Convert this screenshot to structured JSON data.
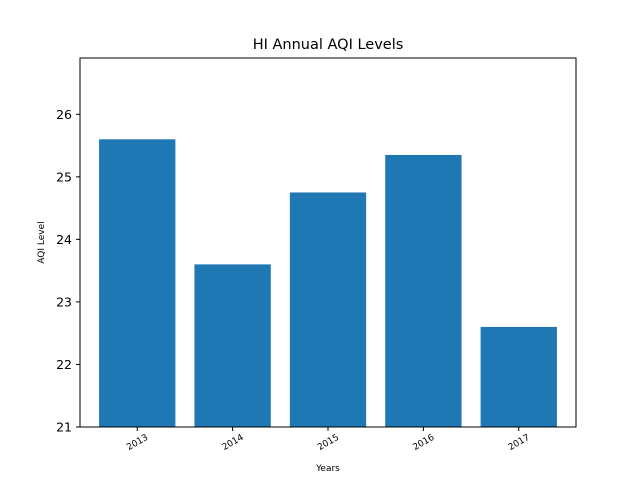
{
  "chart_data": {
    "type": "bar",
    "title": "HI Annual AQI Levels",
    "xlabel": "Years",
    "ylabel": "AQI Level",
    "categories": [
      "2013",
      "2014",
      "2015",
      "2016",
      "2017"
    ],
    "values": [
      25.6,
      23.6,
      24.75,
      25.35,
      22.6
    ],
    "ylim": [
      21,
      26.9
    ],
    "yticks": [
      "21",
      "22",
      "23",
      "24",
      "25",
      "26"
    ],
    "bar_color": "#1f77b4",
    "grid": false,
    "legend": "none"
  }
}
